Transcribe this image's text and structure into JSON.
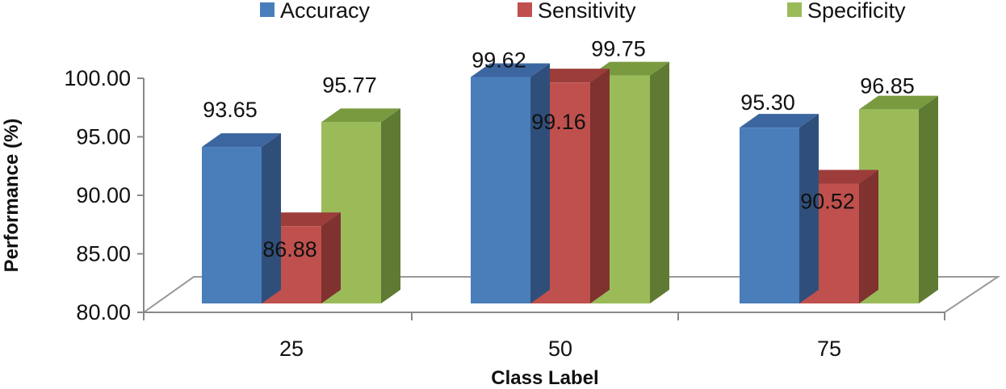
{
  "chart_data": {
    "type": "bar",
    "title": "",
    "xlabel": "Class Label",
    "ylabel": "Performance (%)",
    "categories": [
      "25",
      "50",
      "75"
    ],
    "ylim": [
      80,
      100
    ],
    "ytick_step": 5,
    "yticks": [
      "80.00",
      "85.00",
      "90.00",
      "95.00",
      "100.00"
    ],
    "series": [
      {
        "name": "Accuracy",
        "values": [
          93.65,
          99.62,
          95.3
        ],
        "labels": [
          "93.65",
          "99.62",
          "95.30"
        ],
        "color": "#4a7ebb",
        "side_color": "#2f4f7a",
        "top_color": "#3c66a0"
      },
      {
        "name": "Sensitivity",
        "values": [
          86.88,
          99.16,
          90.52
        ],
        "labels": [
          "86.88",
          "99.16",
          "90.52"
        ],
        "color": "#c0504d",
        "side_color": "#7f3230",
        "top_color": "#9c3d3a"
      },
      {
        "name": "Specificity",
        "values": [
          95.77,
          99.75,
          96.85
        ],
        "labels": [
          "95.77",
          "99.75",
          "96.85"
        ],
        "color": "#9bbb59",
        "side_color": "#5f7a33",
        "top_color": "#7a9a40"
      }
    ],
    "legend_position": "top",
    "grid": false
  }
}
